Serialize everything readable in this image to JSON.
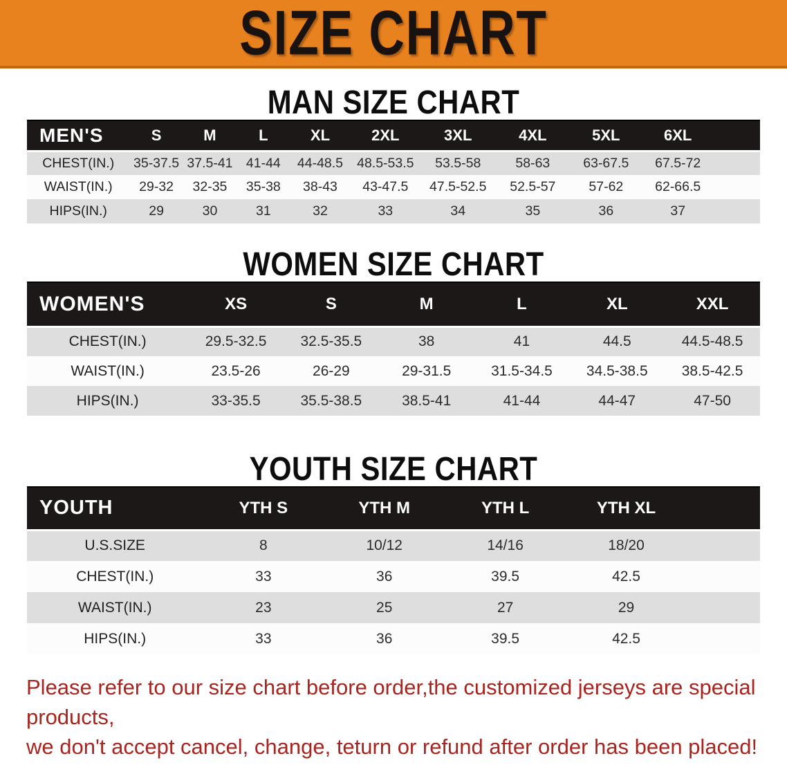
{
  "banner": {
    "title": "SIZE CHART"
  },
  "colors": {
    "banner_orange": "#E8821E",
    "banner_bottom_edge": "#C2690F",
    "table_header_black": "#1B1817",
    "row_stripe_gray": "#DEDEDE",
    "disclaimer_red": "#A8241E"
  },
  "sections": [
    {
      "title": "MAN SIZE CHART",
      "table": {
        "corner_label": "MEN'S",
        "columns": [
          "S",
          "M",
          "L",
          "XL",
          "2XL",
          "3XL",
          "4XL",
          "5XL",
          "6XL"
        ],
        "rows": [
          {
            "label": "CHEST(IN.)",
            "values": [
              "35-37.5",
              "37.5-41",
              "41-44",
              "44-48.5",
              "48.5-53.5",
              "53.5-58",
              "58-63",
              "63-67.5",
              "67.5-72"
            ]
          },
          {
            "label": "WAIST(IN.)",
            "values": [
              "29-32",
              "32-35",
              "35-38",
              "38-43",
              "43-47.5",
              "47.5-52.5",
              "52.5-57",
              "57-62",
              "62-66.5"
            ]
          },
          {
            "label": "HIPS(IN.)",
            "values": [
              "29",
              "30",
              "31",
              "32",
              "33",
              "34",
              "35",
              "36",
              "37"
            ]
          }
        ]
      }
    },
    {
      "title": "WOMEN SIZE CHART",
      "table": {
        "corner_label": "WOMEN'S",
        "columns": [
          "XS",
          "S",
          "M",
          "L",
          "XL",
          "XXL"
        ],
        "rows": [
          {
            "label": "CHEST(IN.)",
            "values": [
              "29.5-32.5",
              "32.5-35.5",
              "38",
              "41",
              "44.5",
              "44.5-48.5"
            ]
          },
          {
            "label": "WAIST(IN.)",
            "values": [
              "23.5-26",
              "26-29",
              "29-31.5",
              "31.5-34.5",
              "34.5-38.5",
              "38.5-42.5"
            ]
          },
          {
            "label": "HIPS(IN.)",
            "values": [
              "33-35.5",
              "35.5-38.5",
              "38.5-41",
              "41-44",
              "44-47",
              "47-50"
            ]
          }
        ]
      }
    },
    {
      "title": "YOUTH SIZE CHART",
      "table": {
        "corner_label": "YOUTH",
        "columns": [
          "YTH S",
          "YTH M",
          "YTH L",
          "YTH XL"
        ],
        "rows": [
          {
            "label": "U.S.SIZE",
            "values": [
              "8",
              "10/12",
              "14/16",
              "18/20"
            ]
          },
          {
            "label": "CHEST(IN.)",
            "values": [
              "33",
              "36",
              "39.5",
              "42.5"
            ]
          },
          {
            "label": "WAIST(IN.)",
            "values": [
              "23",
              "25",
              "27",
              "29"
            ]
          },
          {
            "label": "HIPS(IN.)",
            "values": [
              "33",
              "36",
              "39.5",
              "42.5"
            ]
          }
        ]
      }
    }
  ],
  "disclaimer": {
    "line1": "Please refer to our size chart before order,the customized jerseys are special products,",
    "line2": "we don't accept cancel, change, teturn or refund after order has been placed!"
  }
}
